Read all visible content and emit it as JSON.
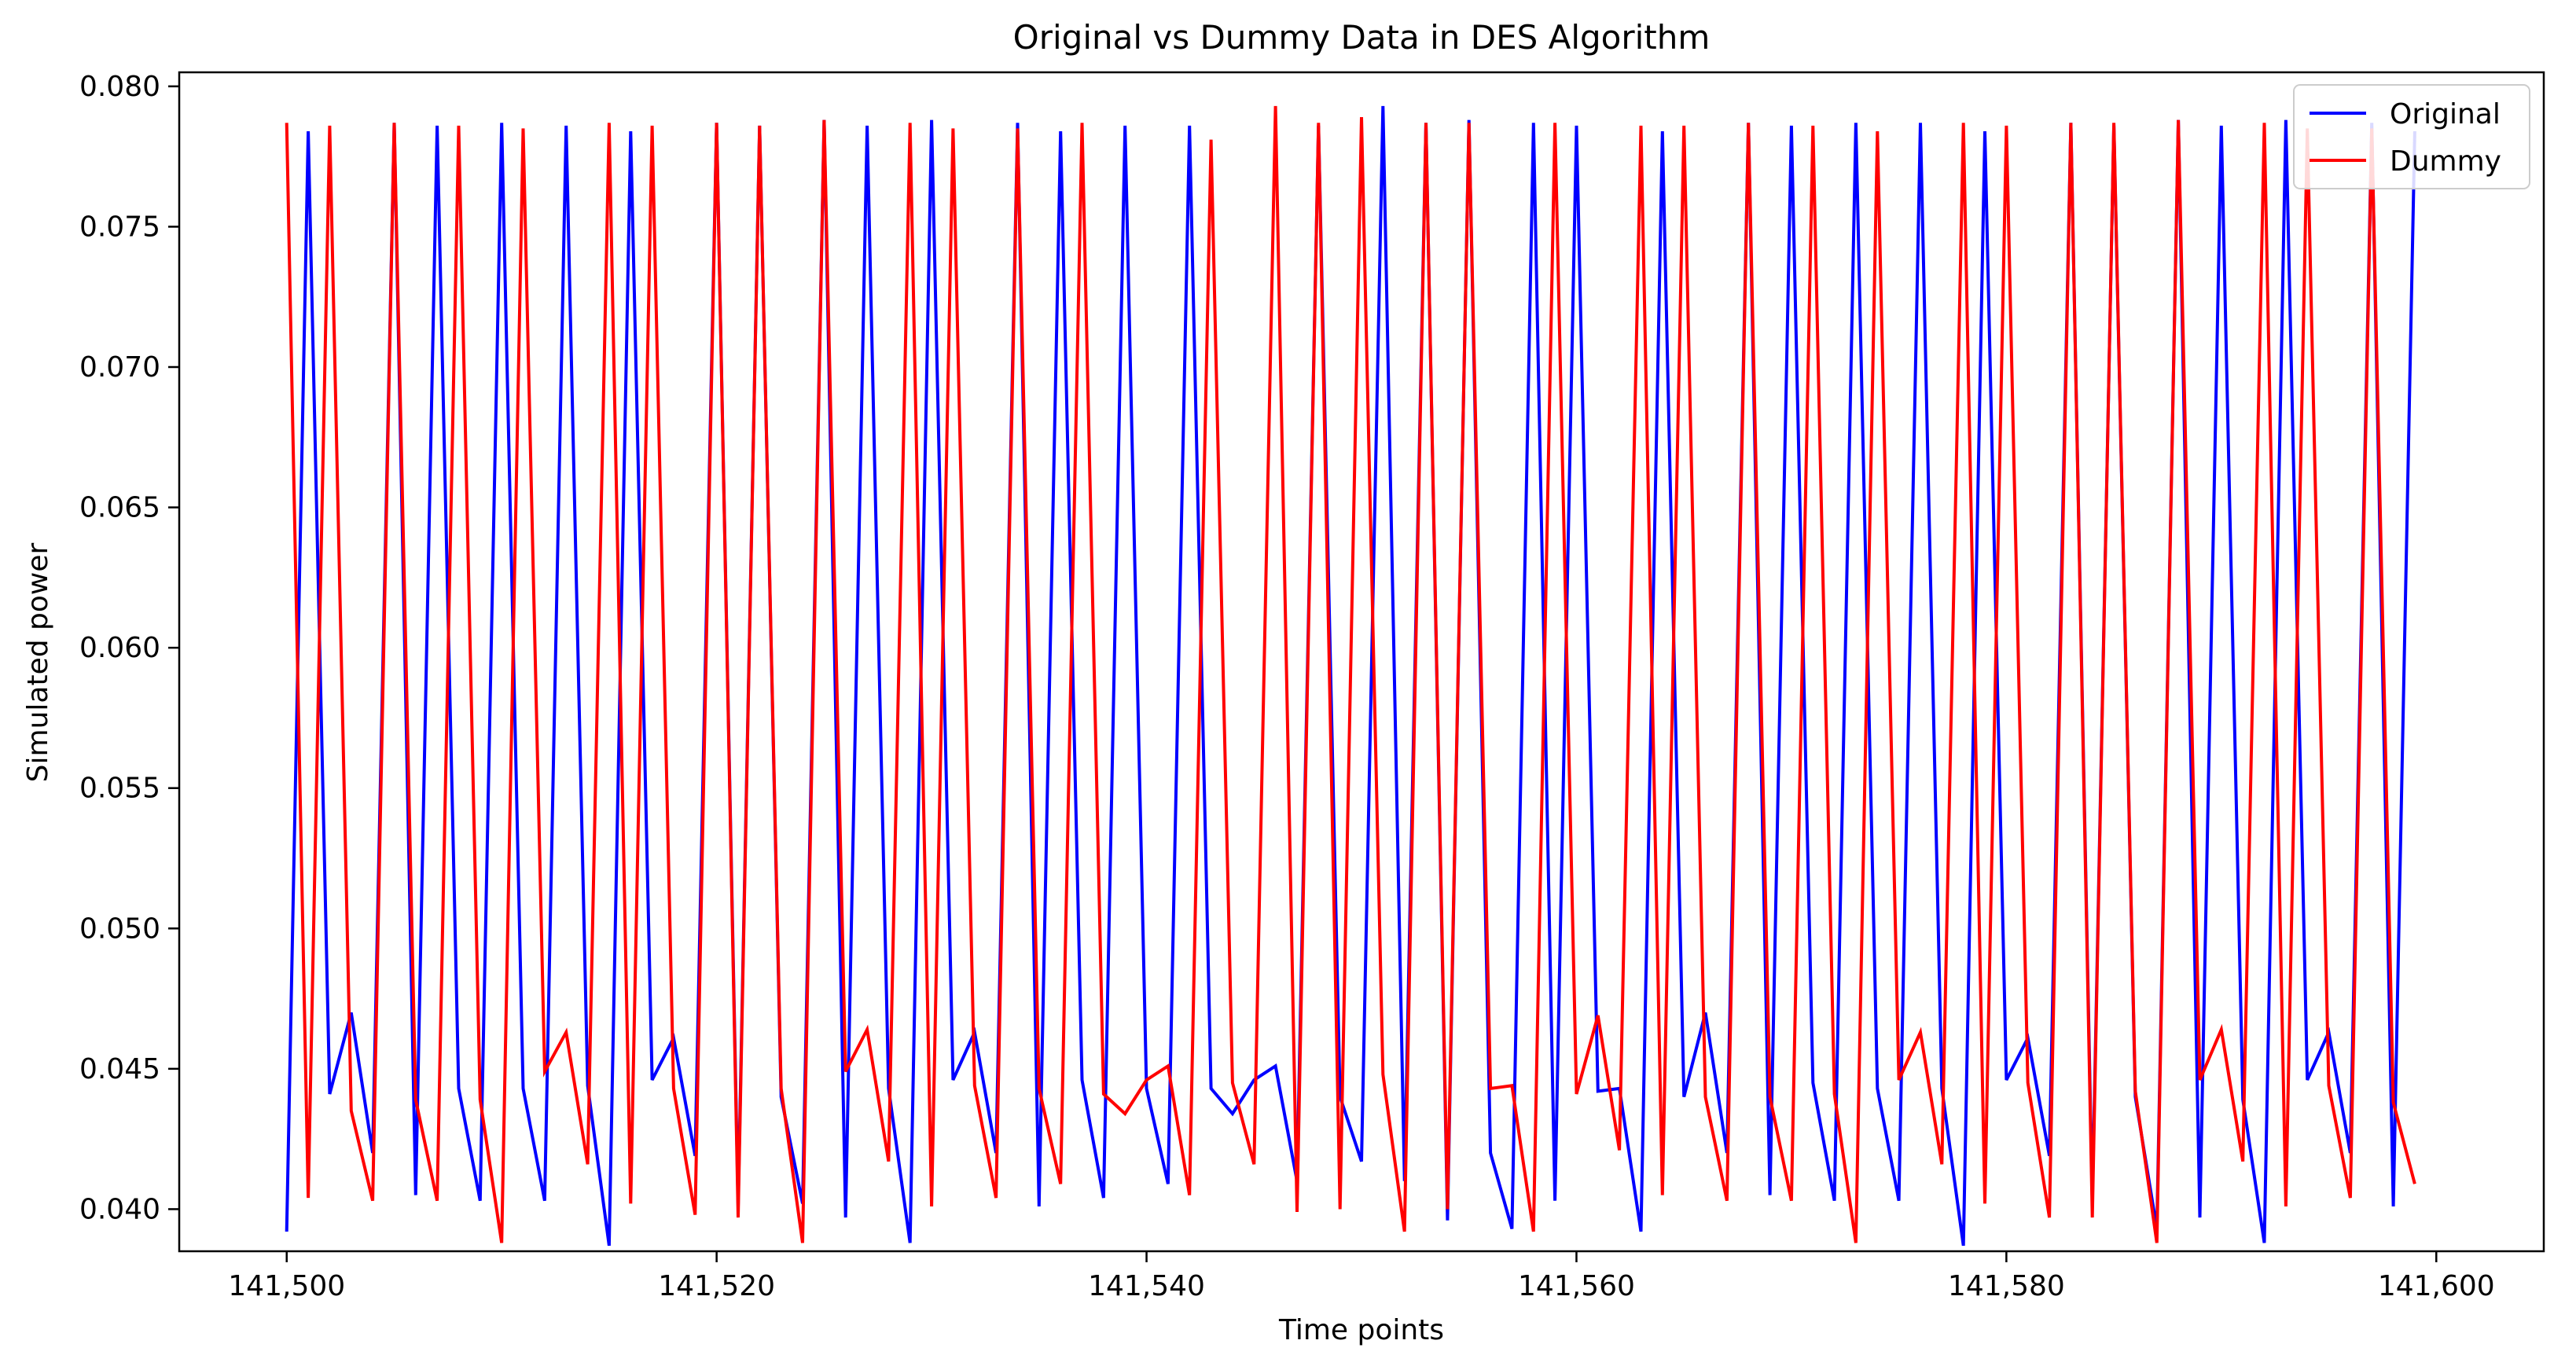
{
  "chart_data": {
    "type": "line",
    "title": "Original vs Dummy Data in DES Algorithm",
    "xlabel": "Time points",
    "ylabel": "Simulated power",
    "xlim": [
      141495,
      141605
    ],
    "ylim": [
      0.0385,
      0.0805
    ],
    "xticks": [
      141500,
      141520,
      141540,
      141560,
      141580,
      141600
    ],
    "xtick_labels": [
      "141,500",
      "141,520",
      "141,540",
      "141,560",
      "141,580",
      "141,600"
    ],
    "yticks": [
      0.04,
      0.045,
      0.05,
      0.055,
      0.06,
      0.065,
      0.07,
      0.075,
      0.08
    ],
    "ytick_labels": [
      "0.040",
      "0.045",
      "0.050",
      "0.055",
      "0.060",
      "0.065",
      "0.070",
      "0.075",
      "0.080"
    ],
    "grid": false,
    "legend_position": "top-right",
    "x": [
      141500,
      141501,
      141502,
      141503,
      141504,
      141505,
      141506,
      141507,
      141508,
      141509,
      141510,
      141511,
      141512,
      141513,
      141514,
      141515,
      141516,
      141517,
      141518,
      141519,
      141520,
      141521,
      141522,
      141523,
      141524,
      141525,
      141526,
      141527,
      141528,
      141529,
      141530,
      141531,
      141532,
      141533,
      141534,
      141535,
      141536,
      141537,
      141538,
      141539,
      141540,
      141541,
      141542,
      141543,
      141544,
      141545,
      141546,
      141547,
      141548,
      141549,
      141550,
      141551,
      141552,
      141553,
      141554,
      141555,
      141556,
      141557,
      141558,
      141559,
      141560,
      141561,
      141562,
      141563,
      141564,
      141565,
      141566,
      141567,
      141568,
      141569,
      141570,
      141571,
      141572,
      141573,
      141574,
      141575,
      141576,
      141577,
      141578,
      141579,
      141580,
      141581,
      141582,
      141583,
      141584,
      141585,
      141586,
      141587,
      141588,
      141589,
      141590,
      141591,
      141592,
      141593,
      141594,
      141595,
      141596,
      141597,
      141598,
      141599
    ],
    "series": [
      {
        "name": "Original",
        "color": "#0000ff",
        "values": [
          0.0392,
          0.0784,
          0.0441,
          0.047,
          0.042,
          0.0787,
          0.0405,
          0.0786,
          0.0443,
          0.0403,
          0.0787,
          0.0443,
          0.0403,
          0.0786,
          0.0444,
          0.0387,
          0.0784,
          0.0446,
          0.0461,
          0.0419,
          0.0787,
          0.0401,
          0.0786,
          0.044,
          0.0402,
          0.0788,
          0.0397,
          0.0786,
          0.0443,
          0.0388,
          0.0788,
          0.0446,
          0.0463,
          0.042,
          0.0787,
          0.0401,
          0.0784,
          0.0446,
          0.0404,
          0.0786,
          0.0443,
          0.0409,
          0.0786,
          0.0443,
          0.0434,
          0.0446,
          0.0451,
          0.041,
          0.0786,
          0.044,
          0.0417,
          0.0793,
          0.041,
          0.0787,
          0.0396,
          0.0788,
          0.042,
          0.0393,
          0.0787,
          0.0403,
          0.0786,
          0.0442,
          0.0443,
          0.0392,
          0.0784,
          0.044,
          0.047,
          0.042,
          0.0787,
          0.0405,
          0.0786,
          0.0445,
          0.0403,
          0.0787,
          0.0443,
          0.0403,
          0.0787,
          0.0443,
          0.0387,
          0.0784,
          0.0446,
          0.0461,
          0.0419,
          0.0787,
          0.0402,
          0.0786,
          0.044,
          0.0393,
          0.0788,
          0.0397,
          0.0786,
          0.0439,
          0.0388,
          0.0788,
          0.0446,
          0.0463,
          0.042,
          0.0787,
          0.0401,
          0.0784
        ]
      },
      {
        "name": "Dummy",
        "color": "#ff0000",
        "values": [
          0.0787,
          0.0404,
          0.0786,
          0.0435,
          0.0403,
          0.0787,
          0.0439,
          0.0403,
          0.0786,
          0.0439,
          0.0388,
          0.0785,
          0.0449,
          0.0463,
          0.0416,
          0.0787,
          0.0402,
          0.0786,
          0.0443,
          0.0398,
          0.0787,
          0.0397,
          0.0786,
          0.0443,
          0.0388,
          0.0788,
          0.0449,
          0.0464,
          0.0417,
          0.0787,
          0.0401,
          0.0785,
          0.0444,
          0.0404,
          0.0785,
          0.0443,
          0.0409,
          0.0787,
          0.0441,
          0.0434,
          0.0446,
          0.0451,
          0.0405,
          0.0781,
          0.0445,
          0.0416,
          0.0793,
          0.0399,
          0.0787,
          0.04,
          0.0789,
          0.0448,
          0.0392,
          0.0787,
          0.04,
          0.0787,
          0.0443,
          0.0444,
          0.0392,
          0.0787,
          0.0441,
          0.0469,
          0.0421,
          0.0786,
          0.0405,
          0.0786,
          0.044,
          0.0403,
          0.0787,
          0.044,
          0.0403,
          0.0786,
          0.0441,
          0.0388,
          0.0784,
          0.0446,
          0.0463,
          0.0416,
          0.0787,
          0.0402,
          0.0786,
          0.0445,
          0.0397,
          0.0787,
          0.0397,
          0.0787,
          0.0442,
          0.0388,
          0.0788,
          0.0446,
          0.0464,
          0.0417,
          0.0787,
          0.0401,
          0.0785,
          0.0444,
          0.0404,
          0.0785,
          0.0438,
          0.0409
        ]
      }
    ]
  }
}
